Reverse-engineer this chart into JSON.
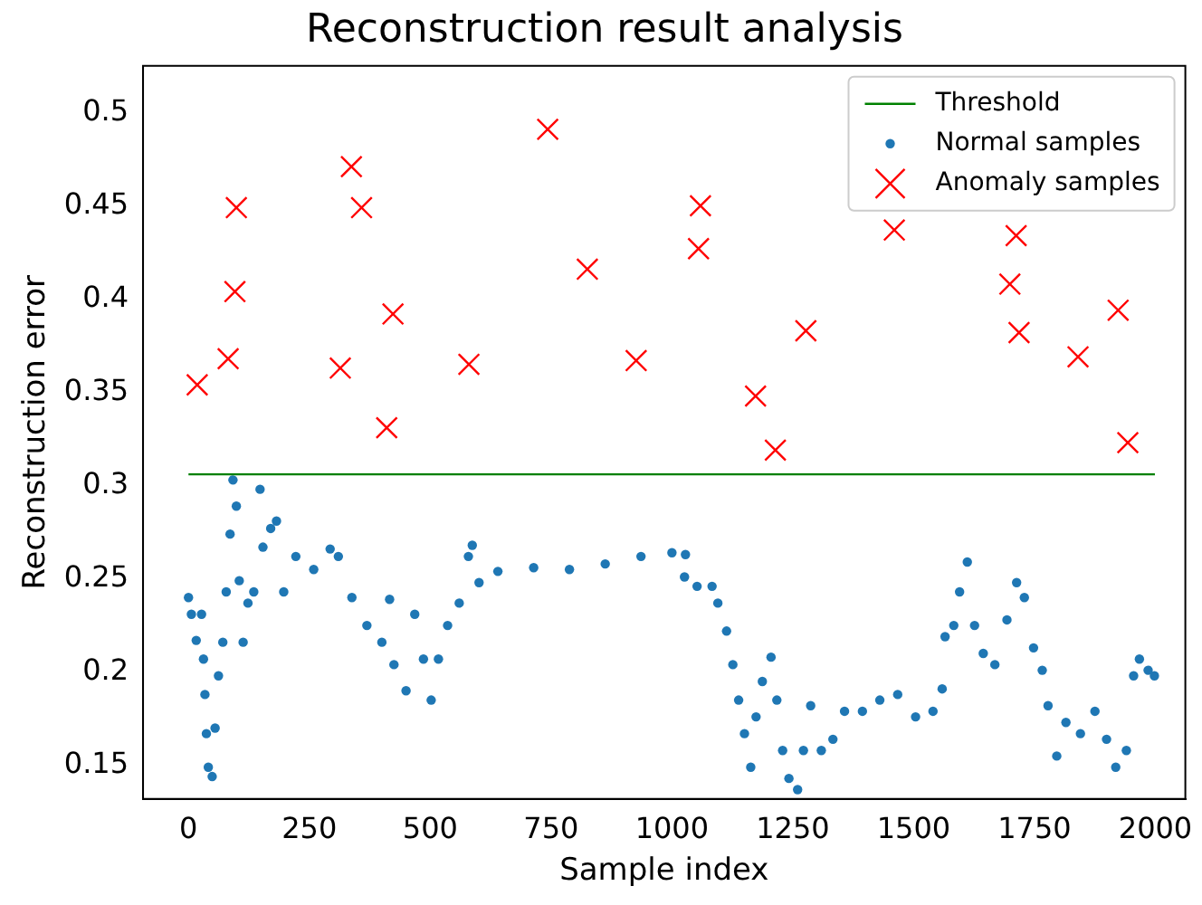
{
  "chart_data": {
    "type": "scatter",
    "title": "Reconstruction result analysis",
    "xlabel": "Sample index",
    "ylabel": "Reconstruction error",
    "xlim": [
      -94,
      2062
    ],
    "ylim": [
      0.132,
      0.525
    ],
    "xticks": [
      0,
      250,
      500,
      750,
      1000,
      1250,
      1500,
      1750,
      2000
    ],
    "yticks": [
      0.15,
      0.2,
      0.25,
      0.3,
      0.35,
      0.4,
      0.45,
      0.5
    ],
    "grid": false,
    "legend": "top right",
    "series": [
      {
        "name": "Threshold",
        "type": "line",
        "color": "#008000",
        "marker": "none",
        "line_style": "solid",
        "x": [
          0,
          1999
        ],
        "values": [
          0.306,
          0.306
        ]
      },
      {
        "name": "Normal samples",
        "type": "scatter",
        "color": "#1f77b4",
        "marker": "circle",
        "x": [
          0,
          6,
          16,
          27,
          31,
          34,
          37,
          41,
          49,
          55,
          62,
          71,
          78,
          86,
          92,
          99,
          105,
          113,
          123,
          135,
          148,
          154,
          170,
          182,
          197,
          222,
          259,
          293,
          310,
          338,
          369,
          400,
          416,
          425,
          450,
          468,
          486,
          502,
          517,
          536,
          560,
          579,
          587,
          601,
          640,
          714,
          788,
          862,
          936,
          1000,
          1028,
          1026,
          1052,
          1083,
          1095,
          1113,
          1126,
          1138,
          1150,
          1163,
          1174,
          1187,
          1205,
          1217,
          1229,
          1242,
          1260,
          1272,
          1287,
          1309,
          1333,
          1357,
          1394,
          1430,
          1467,
          1504,
          1540,
          1559,
          1565,
          1583,
          1595,
          1611,
          1626,
          1644,
          1668,
          1693,
          1713,
          1729,
          1748,
          1766,
          1778,
          1796,
          1815,
          1845,
          1875,
          1899,
          1918,
          1940,
          1955,
          1967,
          1985,
          1998
        ],
        "values": [
          0.24,
          0.231,
          0.217,
          0.231,
          0.207,
          0.188,
          0.167,
          0.149,
          0.144,
          0.17,
          0.198,
          0.216,
          0.243,
          0.274,
          0.303,
          0.289,
          0.249,
          0.216,
          0.237,
          0.243,
          0.298,
          0.267,
          0.277,
          0.281,
          0.243,
          0.262,
          0.255,
          0.266,
          0.262,
          0.24,
          0.225,
          0.216,
          0.239,
          0.204,
          0.19,
          0.231,
          0.207,
          0.185,
          0.207,
          0.225,
          0.237,
          0.262,
          0.268,
          0.248,
          0.254,
          0.256,
          0.255,
          0.258,
          0.262,
          0.264,
          0.263,
          0.251,
          0.246,
          0.246,
          0.237,
          0.222,
          0.204,
          0.185,
          0.167,
          0.149,
          0.176,
          0.195,
          0.208,
          0.185,
          0.158,
          0.143,
          0.137,
          0.158,
          0.182,
          0.158,
          0.164,
          0.179,
          0.179,
          0.185,
          0.188,
          0.176,
          0.179,
          0.191,
          0.219,
          0.225,
          0.243,
          0.259,
          0.225,
          0.21,
          0.204,
          0.228,
          0.248,
          0.24,
          0.213,
          0.201,
          0.182,
          0.155,
          0.173,
          0.167,
          0.179,
          0.164,
          0.149,
          0.158,
          0.198,
          0.207,
          0.201,
          0.198
        ]
      },
      {
        "name": "Anomaly samples",
        "type": "scatter",
        "color": "#ff0000",
        "marker": "cross",
        "x": [
          18,
          82,
          96,
          99,
          314,
          337,
          358,
          410,
          423,
          580,
          743,
          825,
          926,
          1055,
          1059,
          1173,
          1214,
          1277,
          1460,
          1699,
          1712,
          1718,
          1840,
          1923,
          1943
        ],
        "values": [
          0.354,
          0.368,
          0.404,
          0.449,
          0.363,
          0.471,
          0.449,
          0.331,
          0.392,
          0.365,
          0.491,
          0.416,
          0.367,
          0.427,
          0.45,
          0.348,
          0.319,
          0.383,
          0.437,
          0.408,
          0.434,
          0.382,
          0.369,
          0.394,
          0.323
        ]
      }
    ]
  }
}
